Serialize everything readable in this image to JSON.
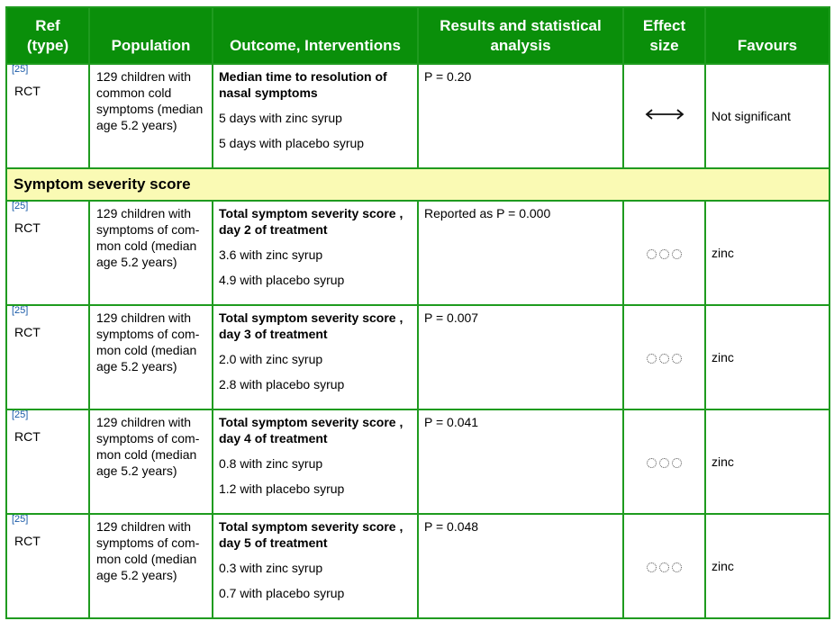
{
  "header": {
    "ref": "Ref\n(type)",
    "ref_line1": "Ref",
    "ref_line2": "(type)",
    "population": "Population",
    "outcome": "Outcome, Interventions",
    "results_line1": "Results and statistical",
    "results_line2": "analysis",
    "effect_line1": "Effect",
    "effect_line2": "size",
    "favours": "Favours"
  },
  "section_title": "Symptom severity score",
  "rows": [
    {
      "ref": "[25]",
      "type": "RCT",
      "population": "129 children with common cold symptoms (median age 5.2 years)",
      "outcome": "Median time to resolution of nasal symptoms",
      "arm1": "5 days with zinc syrup",
      "arm2": "5 days with placebo syrup",
      "result": "P = 0.20",
      "effect_icon": "double-headed-arrow-icon",
      "favours": "Not significant"
    },
    {
      "ref": "[25]",
      "type": "RCT",
      "population": "129 children with symptoms of com-mon cold (median age 5.2 years)",
      "outcome": "Total symptom severity score , day 2 of treatment",
      "arm1": "3.6 with zinc syrup",
      "arm2": "4.9 with placebo syrup",
      "result": "Reported as P = 0.000",
      "effect_icon": "three-empty-circles-icon",
      "favours": "zinc"
    },
    {
      "ref": "[25]",
      "type": "RCT",
      "population": "129 children with symptoms of com-mon cold (median age 5.2 years)",
      "outcome": "Total symptom severity score , day 3 of treatment",
      "arm1": "2.0 with zinc syrup",
      "arm2": "2.8 with placebo syrup",
      "result": "P = 0.007",
      "effect_icon": "three-empty-circles-icon",
      "favours": "zinc"
    },
    {
      "ref": "[25]",
      "type": "RCT",
      "population": "129 children with symptoms of com-mon cold (median age 5.2 years)",
      "outcome": "Total symptom severity score , day 4 of treatment",
      "arm1": "0.8 with zinc syrup",
      "arm2": "1.2 with placebo syrup",
      "result": "P = 0.041",
      "effect_icon": "three-empty-circles-icon",
      "favours": "zinc"
    },
    {
      "ref": "[25]",
      "type": "RCT",
      "population": "129 children with symptoms of com-mon cold (median age 5.2 years)",
      "outcome": "Total symptom severity score , day 5 of treatment",
      "arm1": "0.3 with zinc syrup",
      "arm2": "0.7 with placebo syrup",
      "result": "P = 0.048",
      "effect_icon": "three-empty-circles-icon",
      "favours": "zinc"
    }
  ],
  "colors": {
    "header_bg": "#0a8f0a",
    "border": "#1f9b1f",
    "section_bg": "#fafab4",
    "ref_link": "#1a5aa8"
  }
}
